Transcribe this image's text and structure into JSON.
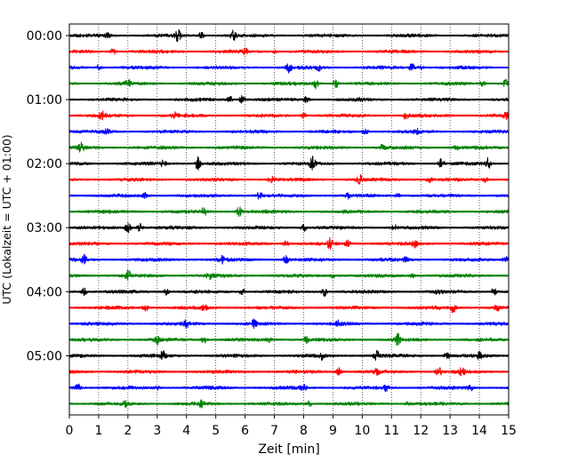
{
  "chart_data": {
    "type": "line",
    "xlabel": "Zeit  [min]",
    "ylabel": "UTC (Lokalzeit = UTC + 01:00)",
    "xlim": [
      0,
      15
    ],
    "x_ticks": [
      "0",
      "1",
      "2",
      "3",
      "4",
      "5",
      "6",
      "7",
      "8",
      "9",
      "10",
      "11",
      "12",
      "13",
      "14",
      "15"
    ],
    "y_tick_labels": [
      "00:00",
      "01:00",
      "02:00",
      "03:00",
      "04:00",
      "05:00"
    ],
    "y_tick_rows": [
      0,
      4,
      8,
      12,
      16,
      20
    ],
    "row_count": 24,
    "row_interval_min": 15,
    "grid": "vertical-dotted",
    "series_colors": [
      "#000000",
      "#ff0000",
      "#0000ff",
      "#008000"
    ],
    "traces": [
      {
        "row": 0,
        "events": [
          [
            1.3,
            0.6
          ],
          [
            3.7,
            1.4
          ],
          [
            5.6,
            1.2
          ],
          [
            4.5,
            0.8
          ]
        ]
      },
      {
        "row": 1,
        "events": [
          [
            1.5,
            0.7
          ],
          [
            6.0,
            0.6
          ],
          [
            7.0,
            0.4
          ]
        ]
      },
      {
        "row": 2,
        "events": [
          [
            1.0,
            0.6
          ],
          [
            7.5,
            1.0
          ],
          [
            8.5,
            0.8
          ],
          [
            11.7,
            0.9
          ],
          [
            12.0,
            0.5
          ]
        ]
      },
      {
        "row": 3,
        "events": [
          [
            2.0,
            0.8
          ],
          [
            8.4,
            1.2
          ],
          [
            9.1,
            1.0
          ],
          [
            14.1,
            0.8
          ],
          [
            14.9,
            0.9
          ]
        ]
      },
      {
        "row": 4,
        "events": [
          [
            5.5,
            1.0
          ],
          [
            5.9,
            0.9
          ],
          [
            8.1,
            0.7
          ],
          [
            10.0,
            0.6
          ]
        ]
      },
      {
        "row": 5,
        "events": [
          [
            1.1,
            1.1
          ],
          [
            3.6,
            0.6
          ],
          [
            8.0,
            0.6
          ],
          [
            11.5,
            0.8
          ],
          [
            14.9,
            0.9
          ]
        ]
      },
      {
        "row": 6,
        "events": [
          [
            1.3,
            0.6
          ],
          [
            10.1,
            0.8
          ],
          [
            11.9,
            0.5
          ]
        ]
      },
      {
        "row": 7,
        "events": [
          [
            0.4,
            1.0
          ],
          [
            10.7,
            0.8
          ],
          [
            13.2,
            0.5
          ]
        ]
      },
      {
        "row": 8,
        "events": [
          [
            4.4,
            1.6
          ],
          [
            8.3,
            1.5
          ],
          [
            12.7,
            1.1
          ],
          [
            14.3,
            1.3
          ],
          [
            3.2,
            0.6
          ]
        ]
      },
      {
        "row": 9,
        "events": [
          [
            6.9,
            0.7
          ],
          [
            9.9,
            1.4
          ],
          [
            12.3,
            0.6
          ],
          [
            14.2,
            0.5
          ]
        ]
      },
      {
        "row": 10,
        "events": [
          [
            2.6,
            0.7
          ],
          [
            6.5,
            0.9
          ],
          [
            9.5,
            0.6
          ],
          [
            11.2,
            0.5
          ]
        ]
      },
      {
        "row": 11,
        "events": [
          [
            4.6,
            1.0
          ],
          [
            5.8,
            1.2
          ]
        ]
      },
      {
        "row": 12,
        "events": [
          [
            2.0,
            1.3
          ],
          [
            2.4,
            1.0
          ],
          [
            8.0,
            0.9
          ],
          [
            11.1,
            0.6
          ]
        ]
      },
      {
        "row": 13,
        "events": [
          [
            7.4,
            0.9
          ],
          [
            8.9,
            1.2
          ],
          [
            9.5,
            0.8
          ],
          [
            11.8,
            0.7
          ]
        ]
      },
      {
        "row": 14,
        "events": [
          [
            0.5,
            1.0
          ],
          [
            5.2,
            0.8
          ],
          [
            7.4,
            0.8
          ],
          [
            11.5,
            0.6
          ],
          [
            14.9,
            0.8
          ]
        ]
      },
      {
        "row": 15,
        "events": [
          [
            2.0,
            1.2
          ],
          [
            4.8,
            0.8
          ],
          [
            9.0,
            0.5
          ],
          [
            11.7,
            0.5
          ]
        ]
      },
      {
        "row": 16,
        "events": [
          [
            0.5,
            0.9
          ],
          [
            3.3,
            0.8
          ],
          [
            5.9,
            0.7
          ],
          [
            8.7,
            1.2
          ],
          [
            12.6,
            0.7
          ],
          [
            14.5,
            0.8
          ]
        ]
      },
      {
        "row": 17,
        "events": [
          [
            2.6,
            0.8
          ],
          [
            4.6,
            0.6
          ],
          [
            13.1,
            1.2
          ],
          [
            14.6,
            0.6
          ]
        ]
      },
      {
        "row": 18,
        "events": [
          [
            4.0,
            0.8
          ],
          [
            6.3,
            0.8
          ],
          [
            9.2,
            0.6
          ]
        ]
      },
      {
        "row": 19,
        "events": [
          [
            3.0,
            1.0
          ],
          [
            4.6,
            0.8
          ],
          [
            6.8,
            0.9
          ],
          [
            8.1,
            0.7
          ],
          [
            11.2,
            1.4
          ]
        ]
      },
      {
        "row": 20,
        "events": [
          [
            3.2,
            1.1
          ],
          [
            8.6,
            0.8
          ],
          [
            10.5,
            1.1
          ],
          [
            12.9,
            0.9
          ],
          [
            14.0,
            0.7
          ]
        ]
      },
      {
        "row": 21,
        "events": [
          [
            9.2,
            1.1
          ],
          [
            10.5,
            0.7
          ],
          [
            12.6,
            1.2
          ],
          [
            13.4,
            0.8
          ]
        ]
      },
      {
        "row": 22,
        "events": [
          [
            0.3,
            1.0
          ],
          [
            3.0,
            0.6
          ],
          [
            8.0,
            0.7
          ],
          [
            10.8,
            0.8
          ],
          [
            13.7,
            0.6
          ]
        ]
      },
      {
        "row": 23,
        "events": [
          [
            1.9,
            0.6
          ],
          [
            4.5,
            0.7
          ],
          [
            8.2,
            0.6
          ],
          [
            11.6,
            0.5
          ]
        ]
      }
    ]
  }
}
